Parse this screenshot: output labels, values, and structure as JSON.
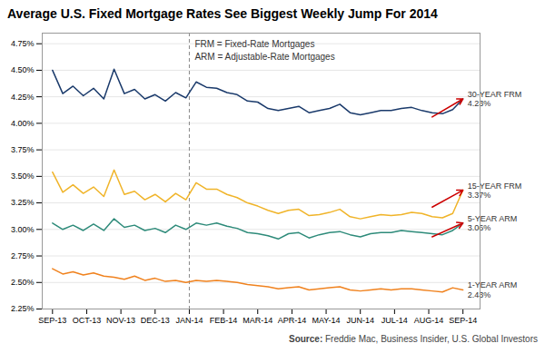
{
  "chart_data": {
    "type": "line",
    "title": "Average U.S. Fixed Mortgage Rates See Biggest Weekly Jump For 2014",
    "source_label": "Source:",
    "source_text": " Freddie Mac, Business Insider, U.S. Global Investors",
    "x": [
      0,
      0.3,
      0.6,
      0.9,
      1.2,
      1.5,
      1.8,
      2.1,
      2.4,
      2.7,
      3,
      3.3,
      3.6,
      3.9,
      4.2,
      4.5,
      4.8,
      5.1,
      5.4,
      5.7,
      6,
      6.3,
      6.6,
      6.9,
      7.2,
      7.5,
      7.8,
      8.1,
      8.4,
      8.7,
      9,
      9.3,
      9.6,
      9.9,
      10.2,
      10.5,
      10.8,
      11.1,
      11.4,
      11.7,
      12
    ],
    "xlim": [
      -0.3,
      12.5
    ],
    "xticks": [
      {
        "value": 0,
        "label": "SEP-13"
      },
      {
        "value": 1,
        "label": "OCT-13"
      },
      {
        "value": 2,
        "label": "NOV-13"
      },
      {
        "value": 3,
        "label": "DEC-13"
      },
      {
        "value": 4,
        "label": "JAN-14"
      },
      {
        "value": 5,
        "label": "FEB-14"
      },
      {
        "value": 6,
        "label": "MAR-14"
      },
      {
        "value": 7,
        "label": "APR-14"
      },
      {
        "value": 8,
        "label": "MAY-14"
      },
      {
        "value": 9,
        "label": "JUN-14"
      },
      {
        "value": 10,
        "label": "JUL-14"
      },
      {
        "value": 11,
        "label": "AUG-14"
      },
      {
        "value": 12,
        "label": "SEP-14"
      }
    ],
    "ylim": [
      2.25,
      4.85
    ],
    "yticks": [
      {
        "value": 2.25,
        "label": "2.25%"
      },
      {
        "value": 2.5,
        "label": "2.50%"
      },
      {
        "value": 2.75,
        "label": "2.75%"
      },
      {
        "value": 3.0,
        "label": "3.00%"
      },
      {
        "value": 3.25,
        "label": "3.25%"
      },
      {
        "value": 3.5,
        "label": "3.50%"
      },
      {
        "value": 3.75,
        "label": "3.75%"
      },
      {
        "value": 4.0,
        "label": "4.00%"
      },
      {
        "value": 4.25,
        "label": "4.25%"
      },
      {
        "value": 4.5,
        "label": "4.50%"
      },
      {
        "value": 4.75,
        "label": "4.75%"
      }
    ],
    "grid": true,
    "series": [
      {
        "name": "30-YEAR FRM",
        "color": "#1a3a6b",
        "values": [
          4.5,
          4.28,
          4.35,
          4.26,
          4.33,
          4.23,
          4.51,
          4.28,
          4.32,
          4.23,
          4.27,
          4.21,
          4.29,
          4.24,
          4.39,
          4.34,
          4.33,
          4.29,
          4.27,
          4.21,
          4.2,
          4.14,
          4.12,
          4.14,
          4.16,
          4.1,
          4.12,
          4.14,
          4.18,
          4.1,
          4.08,
          4.1,
          4.12,
          4.12,
          4.14,
          4.15,
          4.12,
          4.1,
          4.09,
          4.13,
          4.23
        ],
        "value_labels": [
          null,
          null,
          null,
          null,
          null,
          null,
          null,
          null,
          null,
          null,
          null,
          null,
          null,
          null,
          null,
          null,
          null,
          null,
          null,
          null,
          null,
          null,
          null,
          null,
          null,
          null,
          null,
          null,
          null,
          null,
          null,
          null,
          null,
          null,
          null,
          null,
          null,
          null,
          null,
          null,
          "4.23%"
        ]
      },
      {
        "name": "15-YEAR FRM",
        "color": "#f0b429",
        "values": [
          3.54,
          3.35,
          3.42,
          3.34,
          3.4,
          3.31,
          3.56,
          3.33,
          3.36,
          3.28,
          3.33,
          3.26,
          3.34,
          3.28,
          3.44,
          3.38,
          3.38,
          3.33,
          3.3,
          3.25,
          3.22,
          3.18,
          3.15,
          3.18,
          3.19,
          3.13,
          3.14,
          3.16,
          3.19,
          3.12,
          3.1,
          3.12,
          3.14,
          3.13,
          3.14,
          3.16,
          3.15,
          3.12,
          3.11,
          3.15,
          3.37
        ],
        "value_labels": [
          null,
          null,
          null,
          null,
          null,
          null,
          null,
          null,
          null,
          null,
          null,
          null,
          null,
          null,
          null,
          null,
          null,
          null,
          null,
          null,
          null,
          null,
          null,
          null,
          null,
          null,
          null,
          null,
          null,
          null,
          null,
          null,
          null,
          null,
          null,
          null,
          null,
          null,
          null,
          null,
          "3.37%"
        ]
      },
      {
        "name": "5-YEAR ARM",
        "color": "#2e8b7a",
        "values": [
          3.06,
          3.0,
          3.04,
          2.99,
          3.05,
          2.99,
          3.1,
          3.02,
          3.04,
          2.99,
          3.01,
          2.97,
          3.04,
          3.0,
          3.06,
          3.04,
          3.06,
          3.03,
          3.01,
          2.97,
          2.96,
          2.94,
          2.91,
          2.96,
          2.97,
          2.92,
          2.95,
          2.97,
          2.98,
          2.95,
          2.93,
          2.96,
          2.97,
          2.97,
          2.99,
          2.98,
          2.97,
          2.96,
          2.95,
          2.99,
          3.06
        ],
        "value_labels": [
          null,
          null,
          null,
          null,
          null,
          null,
          null,
          null,
          null,
          null,
          null,
          null,
          null,
          null,
          null,
          null,
          null,
          null,
          null,
          null,
          null,
          null,
          null,
          null,
          null,
          null,
          null,
          null,
          null,
          null,
          null,
          null,
          null,
          null,
          null,
          null,
          null,
          null,
          null,
          null,
          "3.06%"
        ]
      },
      {
        "name": "1-YEAR ARM",
        "color": "#f0821e",
        "values": [
          2.63,
          2.58,
          2.6,
          2.57,
          2.59,
          2.56,
          2.55,
          2.53,
          2.56,
          2.52,
          2.54,
          2.51,
          2.52,
          2.5,
          2.52,
          2.51,
          2.52,
          2.51,
          2.5,
          2.48,
          2.47,
          2.46,
          2.44,
          2.45,
          2.46,
          2.43,
          2.44,
          2.45,
          2.46,
          2.43,
          2.42,
          2.43,
          2.44,
          2.43,
          2.44,
          2.44,
          2.43,
          2.42,
          2.41,
          2.45,
          2.43
        ],
        "value_labels": [
          null,
          null,
          null,
          null,
          null,
          null,
          null,
          null,
          null,
          null,
          null,
          null,
          null,
          null,
          null,
          null,
          null,
          null,
          null,
          null,
          null,
          null,
          null,
          null,
          null,
          null,
          null,
          null,
          null,
          null,
          null,
          null,
          null,
          null,
          null,
          null,
          null,
          null,
          null,
          null,
          "2.43%"
        ]
      }
    ],
    "reference_lines": [
      {
        "x": 4,
        "line_style": "dashed"
      }
    ],
    "annotations": [
      {
        "text": "FRM = Fixed-Rate Mortgages\nARM = Adjustable-Rate Mortgages",
        "x": 4
      }
    ],
    "arrows": [
      {
        "x1": 11.1,
        "y1": 4.06,
        "x2": 12.0,
        "y2": 4.23,
        "color": "#cc0000"
      },
      {
        "x1": 11.1,
        "y1": 3.21,
        "x2": 12.0,
        "y2": 3.37,
        "color": "#cc0000"
      },
      {
        "x1": 11.1,
        "y1": 2.93,
        "x2": 12.0,
        "y2": 3.06,
        "color": "#cc0000"
      }
    ]
  }
}
